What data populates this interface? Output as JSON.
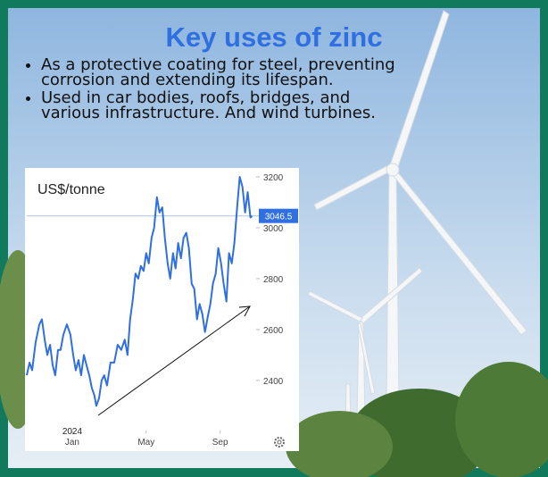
{
  "title": "Key uses of zinc",
  "bullets": [
    "As a protective coating for steel, preventing corrosion and extending its lifespan.",
    "Used in car bodies, roofs, bridges, and various infrastructure. And wind turbines."
  ],
  "chart_data": {
    "type": "line",
    "unit_label": "US$/tonne",
    "year_label": "2024",
    "x": [
      -2.46,
      -2.31,
      -2.17,
      -1.98,
      -1.78,
      -1.64,
      -1.49,
      -1.35,
      -1.2,
      -1.06,
      -0.92,
      -0.77,
      -0.63,
      -0.48,
      -0.29,
      -0.1,
      0.05,
      0.19,
      0.34,
      0.48,
      0.63,
      0.77,
      0.92,
      1.06,
      1.2,
      1.3,
      1.45,
      1.59,
      1.73,
      1.88,
      2.07,
      2.27,
      2.46,
      2.65,
      2.84,
      2.99,
      3.13,
      3.28,
      3.42,
      3.57,
      3.71,
      3.86,
      4.0,
      4.14,
      4.29,
      4.43,
      4.58,
      4.72,
      4.87,
      5.01,
      5.16,
      5.3,
      5.45,
      5.59,
      5.73,
      5.88,
      6.02,
      6.17,
      6.31,
      6.46,
      6.6,
      6.75,
      6.89,
      7.04,
      7.18,
      7.33,
      7.47,
      7.61,
      7.76,
      7.9,
      8.05,
      8.19,
      8.34,
      8.48,
      8.63,
      8.77,
      8.92,
      9.06,
      9.21,
      9.35,
      9.49,
      9.64,
      9.73
    ],
    "series": [
      {
        "color": "#2f6fe0",
        "values": [
          2420,
          2470,
          2440,
          2550,
          2620,
          2640,
          2560,
          2500,
          2540,
          2460,
          2420,
          2520,
          2520,
          2580,
          2620,
          2580,
          2500,
          2440,
          2480,
          2420,
          2500,
          2460,
          2420,
          2370,
          2340,
          2300,
          2330,
          2400,
          2420,
          2380,
          2470,
          2470,
          2540,
          2520,
          2560,
          2500,
          2640,
          2720,
          2820,
          2800,
          2850,
          2830,
          2900,
          2860,
          2960,
          3000,
          3120,
          3060,
          3080,
          2960,
          2860,
          2800,
          2900,
          2840,
          2940,
          2880,
          2960,
          2980,
          2920,
          2780,
          2760,
          2640,
          2700,
          2660,
          2590,
          2650,
          2700,
          2780,
          2820,
          2920,
          2860,
          2780,
          2710,
          2900,
          2860,
          2940,
          3080,
          3200,
          3160,
          3060,
          3140,
          3040,
          3046.5
        ]
      }
    ],
    "last_value": 3046.5,
    "xlim": [
      -2.46,
      9.9
    ],
    "xticks": [
      {
        "value": 0,
        "label": "Jan"
      },
      {
        "value": 4,
        "label": "May"
      },
      {
        "value": 8,
        "label": "Sep"
      }
    ],
    "ylim": [
      2210,
      3235
    ],
    "yticks": [
      2400,
      2600,
      2800,
      3000,
      3200
    ]
  }
}
